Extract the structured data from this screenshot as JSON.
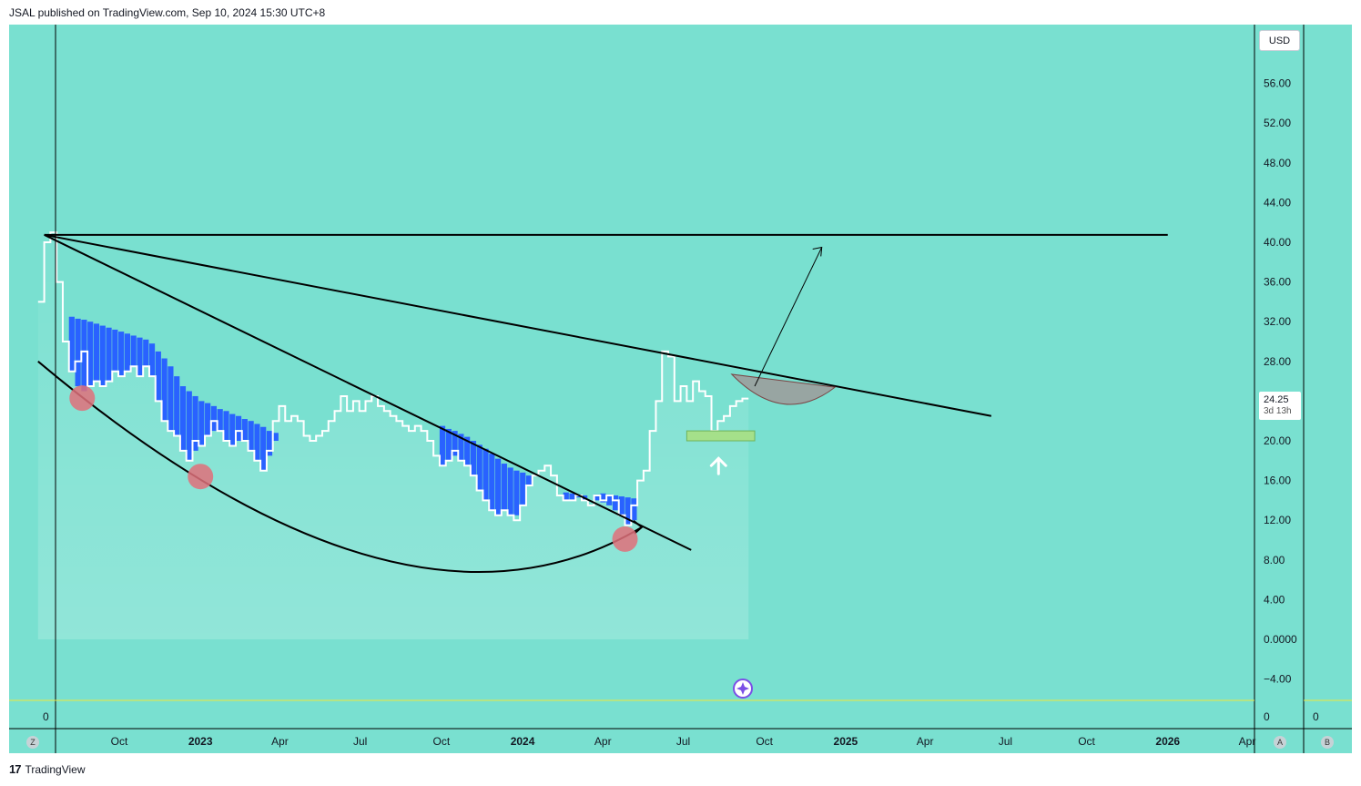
{
  "header": {
    "text": "JSAL published on TradingView.com, Sep 10, 2024 15:30 UTC+8"
  },
  "footer": {
    "logo": "17",
    "brand": "TradingView"
  },
  "currency": "USD",
  "last_price": {
    "value": "24.25",
    "countdown": "3d 13h"
  },
  "lower_pane": {
    "left_value": "0",
    "right_value": "0",
    "far_right_value": "0"
  },
  "buttons": {
    "z": "Z",
    "a": "A",
    "b": "B"
  },
  "colors": {
    "background": "#79e0d0",
    "price_line": "#ffffff",
    "cloud_fill": "#2962ff",
    "trend_lines": "#000000",
    "marker_circle": "#e0707a",
    "target_box": "#a5e08a",
    "cup_fill": "#9e9a9a",
    "volume_line": "#f0e83a"
  },
  "chart_data": {
    "type": "line",
    "title": "",
    "xlabel": "",
    "ylabel": "",
    "ylim": [
      -6,
      60
    ],
    "y_ticks": [
      "56.00",
      "52.00",
      "48.00",
      "44.00",
      "40.00",
      "36.00",
      "32.00",
      "28.00",
      "24.00",
      "20.00",
      "16.00",
      "12.00",
      "8.00",
      "4.00",
      "0.0000",
      "−4.00"
    ],
    "y_tick_values": [
      56,
      52,
      48,
      44,
      40,
      36,
      32,
      28,
      24,
      20,
      16,
      12,
      8,
      4,
      0,
      -4
    ],
    "x_ticks": [
      {
        "label": "Oct",
        "date": "2022-10-01",
        "bold": false
      },
      {
        "label": "2023",
        "date": "2023-01-01",
        "bold": true
      },
      {
        "label": "Apr",
        "date": "2023-04-01",
        "bold": false
      },
      {
        "label": "Jul",
        "date": "2023-07-01",
        "bold": false
      },
      {
        "label": "Oct",
        "date": "2023-10-01",
        "bold": false
      },
      {
        "label": "2024",
        "date": "2024-01-01",
        "bold": true
      },
      {
        "label": "Apr",
        "date": "2024-04-01",
        "bold": false
      },
      {
        "label": "Jul",
        "date": "2024-07-01",
        "bold": false
      },
      {
        "label": "Oct",
        "date": "2024-10-01",
        "bold": false
      },
      {
        "label": "2025",
        "date": "2025-01-01",
        "bold": true
      },
      {
        "label": "Apr",
        "date": "2025-04-01",
        "bold": false
      },
      {
        "label": "Jul",
        "date": "2025-07-01",
        "bold": false
      },
      {
        "label": "Oct",
        "date": "2025-10-01",
        "bold": false
      },
      {
        "label": "2026",
        "date": "2026-01-01",
        "bold": true
      },
      {
        "label": "Apr",
        "date": "2026-04-01",
        "bold": false
      }
    ],
    "series": [
      {
        "kind": "price_step",
        "points": [
          [
            "2022-07-01",
            34
          ],
          [
            "2022-07-08",
            40
          ],
          [
            "2022-07-15",
            41
          ],
          [
            "2022-07-22",
            36
          ],
          [
            "2022-07-29",
            30
          ],
          [
            "2022-08-05",
            27
          ],
          [
            "2022-08-12",
            28
          ],
          [
            "2022-08-19",
            29
          ],
          [
            "2022-08-26",
            25.5
          ],
          [
            "2022-09-02",
            26
          ],
          [
            "2022-09-09",
            25.5
          ],
          [
            "2022-09-16",
            26
          ],
          [
            "2022-09-23",
            27
          ],
          [
            "2022-09-30",
            26.5
          ],
          [
            "2022-10-07",
            27
          ],
          [
            "2022-10-14",
            27.5
          ],
          [
            "2022-10-21",
            26.5
          ],
          [
            "2022-10-28",
            27.5
          ],
          [
            "2022-11-04",
            26.5
          ],
          [
            "2022-11-11",
            24
          ],
          [
            "2022-11-18",
            22
          ],
          [
            "2022-11-25",
            21
          ],
          [
            "2022-12-02",
            20.5
          ],
          [
            "2022-12-09",
            19
          ],
          [
            "2022-12-16",
            18
          ],
          [
            "2022-12-23",
            20
          ],
          [
            "2022-12-30",
            19.5
          ],
          [
            "2023-01-06",
            20.5
          ],
          [
            "2023-01-13",
            22
          ],
          [
            "2023-01-20",
            21
          ],
          [
            "2023-01-27",
            20
          ],
          [
            "2023-02-03",
            19.5
          ],
          [
            "2023-02-10",
            21
          ],
          [
            "2023-02-17",
            20
          ],
          [
            "2023-02-24",
            19
          ],
          [
            "2023-03-03",
            18
          ],
          [
            "2023-03-10",
            17
          ],
          [
            "2023-03-17",
            19
          ],
          [
            "2023-03-24",
            22
          ],
          [
            "2023-03-31",
            23.5
          ],
          [
            "2023-04-07",
            22
          ],
          [
            "2023-04-14",
            22.5
          ],
          [
            "2023-04-21",
            22
          ],
          [
            "2023-04-28",
            20.5
          ],
          [
            "2023-05-05",
            20
          ],
          [
            "2023-05-12",
            20.5
          ],
          [
            "2023-05-19",
            21
          ],
          [
            "2023-05-26",
            22
          ],
          [
            "2023-06-02",
            23
          ],
          [
            "2023-06-09",
            24.5
          ],
          [
            "2023-06-16",
            23
          ],
          [
            "2023-06-23",
            24
          ],
          [
            "2023-06-30",
            23
          ],
          [
            "2023-07-07",
            24
          ],
          [
            "2023-07-14",
            24.5
          ],
          [
            "2023-07-21",
            23.5
          ],
          [
            "2023-07-28",
            23
          ],
          [
            "2023-08-04",
            22.5
          ],
          [
            "2023-08-11",
            22
          ],
          [
            "2023-08-18",
            21.5
          ],
          [
            "2023-08-25",
            21
          ],
          [
            "2023-09-01",
            21.5
          ],
          [
            "2023-09-08",
            21
          ],
          [
            "2023-09-15",
            20
          ],
          [
            "2023-09-22",
            18.5
          ],
          [
            "2023-09-29",
            17.5
          ],
          [
            "2023-10-06",
            18
          ],
          [
            "2023-10-13",
            19
          ],
          [
            "2023-10-20",
            18
          ],
          [
            "2023-10-27",
            17.5
          ],
          [
            "2023-11-03",
            16.5
          ],
          [
            "2023-11-10",
            15
          ],
          [
            "2023-11-17",
            14
          ],
          [
            "2023-11-24",
            13
          ],
          [
            "2023-12-01",
            12.5
          ],
          [
            "2023-12-08",
            13
          ],
          [
            "2023-12-15",
            12.5
          ],
          [
            "2023-12-22",
            12
          ],
          [
            "2023-12-29",
            13.5
          ],
          [
            "2024-01-05",
            15.5
          ],
          [
            "2024-01-12",
            16.5
          ],
          [
            "2024-01-19",
            17
          ],
          [
            "2024-01-26",
            17.5
          ],
          [
            "2024-02-02",
            16.5
          ],
          [
            "2024-02-09",
            14.5
          ],
          [
            "2024-02-16",
            14
          ],
          [
            "2024-02-23",
            14
          ],
          [
            "2024-03-01",
            14.5
          ],
          [
            "2024-03-08",
            14
          ],
          [
            "2024-03-15",
            13.5
          ],
          [
            "2024-03-22",
            14.5
          ],
          [
            "2024-03-29",
            14
          ],
          [
            "2024-04-05",
            14.5
          ],
          [
            "2024-04-12",
            14
          ],
          [
            "2024-04-19",
            12.5
          ],
          [
            "2024-04-26",
            11.5
          ],
          [
            "2024-05-03",
            13.5
          ],
          [
            "2024-05-10",
            16
          ],
          [
            "2024-05-17",
            17
          ],
          [
            "2024-05-24",
            21
          ],
          [
            "2024-05-31",
            24
          ],
          [
            "2024-06-07",
            29
          ],
          [
            "2024-06-14",
            28.5
          ],
          [
            "2024-06-21",
            24
          ],
          [
            "2024-06-28",
            25.5
          ],
          [
            "2024-07-05",
            24
          ],
          [
            "2024-07-12",
            26
          ],
          [
            "2024-07-19",
            25
          ],
          [
            "2024-07-26",
            24.5
          ],
          [
            "2024-08-02",
            21
          ],
          [
            "2024-08-09",
            22
          ],
          [
            "2024-08-16",
            22.5
          ],
          [
            "2024-08-23",
            23.5
          ],
          [
            "2024-08-30",
            24
          ],
          [
            "2024-09-06",
            24.25
          ]
        ]
      },
      {
        "kind": "cloud_bars",
        "points": [
          [
            "2022-08-05",
            27,
            32.5
          ],
          [
            "2022-08-12",
            25.5,
            32.3
          ],
          [
            "2022-08-19",
            25,
            32.2
          ],
          [
            "2022-08-26",
            25.5,
            32.0
          ],
          [
            "2022-09-02",
            26,
            31.8
          ],
          [
            "2022-09-09",
            25.5,
            31.6
          ],
          [
            "2022-09-16",
            26,
            31.4
          ],
          [
            "2022-09-23",
            27,
            31.2
          ],
          [
            "2022-09-30",
            26.5,
            31.0
          ],
          [
            "2022-10-07",
            27,
            30.8
          ],
          [
            "2022-10-14",
            27.5,
            30.6
          ],
          [
            "2022-10-21",
            26.5,
            30.4
          ],
          [
            "2022-10-28",
            27.5,
            30.2
          ],
          [
            "2022-11-04",
            26.5,
            29.8
          ],
          [
            "2022-11-11",
            24,
            29.0
          ],
          [
            "2022-11-18",
            22,
            28.3
          ],
          [
            "2022-11-25",
            21,
            27.5
          ],
          [
            "2022-12-02",
            20.5,
            26.5
          ],
          [
            "2022-12-09",
            19,
            25.5
          ],
          [
            "2022-12-16",
            18,
            25
          ],
          [
            "2022-12-23",
            19,
            24.5
          ],
          [
            "2022-12-30",
            19.5,
            24
          ],
          [
            "2023-01-06",
            20.5,
            23.8
          ],
          [
            "2023-01-13",
            21,
            23.5
          ],
          [
            "2023-01-20",
            21,
            23.2
          ],
          [
            "2023-01-27",
            20,
            23.0
          ],
          [
            "2023-02-03",
            19.5,
            22.7
          ],
          [
            "2023-02-10",
            20,
            22.5
          ],
          [
            "2023-02-17",
            20,
            22.2
          ],
          [
            "2023-02-24",
            19,
            22.0
          ],
          [
            "2023-03-03",
            18,
            21.7
          ],
          [
            "2023-03-10",
            17,
            21.4
          ],
          [
            "2023-03-17",
            18.5,
            21.0
          ],
          [
            "2023-03-24",
            20,
            20.8
          ],
          [
            "2023-09-29",
            17.5,
            21.5
          ],
          [
            "2023-10-06",
            18,
            21.2
          ],
          [
            "2023-10-13",
            18.5,
            21.0
          ],
          [
            "2023-10-20",
            18,
            20.7
          ],
          [
            "2023-10-27",
            17.5,
            20.4
          ],
          [
            "2023-11-03",
            16.5,
            20.0
          ],
          [
            "2023-11-10",
            15,
            19.6
          ],
          [
            "2023-11-17",
            14,
            19.2
          ],
          [
            "2023-11-24",
            13,
            18.7
          ],
          [
            "2023-12-01",
            12.5,
            18.2
          ],
          [
            "2023-12-08",
            13,
            17.7
          ],
          [
            "2023-12-15",
            12.5,
            17.3
          ],
          [
            "2023-12-22",
            12.5,
            17.0
          ],
          [
            "2023-12-29",
            13.5,
            16.8
          ],
          [
            "2024-01-05",
            15.5,
            16.5
          ],
          [
            "2024-02-16",
            14,
            14.8
          ],
          [
            "2024-02-23",
            14,
            14.7
          ],
          [
            "2024-03-01",
            14.3,
            14.6
          ],
          [
            "2024-03-08",
            14,
            14.5
          ],
          [
            "2024-03-22",
            14,
            14.6
          ],
          [
            "2024-03-29",
            13.8,
            14.7
          ],
          [
            "2024-04-05",
            13.5,
            14.6
          ],
          [
            "2024-04-12",
            13,
            14.5
          ],
          [
            "2024-04-19",
            12.5,
            14.4
          ],
          [
            "2024-04-26",
            11.5,
            14.3
          ],
          [
            "2024-05-03",
            12,
            14.2
          ]
        ]
      }
    ],
    "annotations": {
      "horizontal_line": {
        "y": 40.75,
        "from": "2022-07-08",
        "to": "2026-01-01"
      },
      "trend_line_1": {
        "from": [
          "2022-07-08",
          40.75
        ],
        "to": [
          "2025-06-15",
          22.5
        ]
      },
      "trend_line_2": {
        "from": [
          "2022-07-08",
          40.75
        ],
        "to": [
          "2024-07-10",
          9
        ]
      },
      "arc": {
        "start": [
          "2022-07-01",
          28
        ],
        "control": [
          "2023-08-20",
          -3
        ],
        "end": [
          "2024-05-15",
          11.3
        ]
      },
      "circles": [
        [
          "2022-08-20",
          24.3
        ],
        [
          "2023-01-01",
          16.4
        ],
        [
          "2024-04-26",
          10.1
        ]
      ],
      "target_box": {
        "x0": "2024-07-05",
        "x1": "2024-09-20",
        "y0": 20.0,
        "y1": 21.0
      },
      "up_arrow": {
        "x": "2024-08-10",
        "y": 17.5
      },
      "cup": {
        "x0": "2024-08-25",
        "x1": "2024-12-20",
        "y_top": 26.7,
        "y_bottom": 23.9
      },
      "breakout_arrow": {
        "from": [
          "2024-09-20",
          25.5
        ],
        "to": [
          "2024-12-05",
          39.5
        ]
      }
    }
  }
}
